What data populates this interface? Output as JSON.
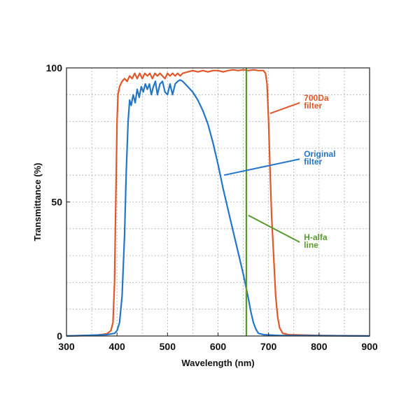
{
  "chart_data": {
    "type": "line",
    "title": "",
    "xlabel": "Wavelength (nm)",
    "ylabel": "Transmittance (%)",
    "xlim": [
      300,
      900
    ],
    "ylim": [
      0,
      100
    ],
    "x_ticks": [
      300,
      400,
      500,
      600,
      700,
      800,
      900
    ],
    "y_ticks": [
      0,
      50,
      100
    ],
    "grid": "dotted",
    "series": [
      {
        "name": "700Da filter",
        "color": "#e0582a",
        "points": [
          [
            300,
            0
          ],
          [
            360,
            0.3
          ],
          [
            380,
            0.8
          ],
          [
            388,
            2
          ],
          [
            392,
            5
          ],
          [
            395,
            20
          ],
          [
            398,
            55
          ],
          [
            400,
            80
          ],
          [
            402,
            90
          ],
          [
            405,
            93
          ],
          [
            410,
            95
          ],
          [
            415,
            96
          ],
          [
            420,
            95
          ],
          [
            425,
            97
          ],
          [
            430,
            96
          ],
          [
            435,
            98
          ],
          [
            440,
            96
          ],
          [
            445,
            98
          ],
          [
            450,
            96
          ],
          [
            455,
            98
          ],
          [
            460,
            97
          ],
          [
            465,
            98
          ],
          [
            470,
            96
          ],
          [
            475,
            98
          ],
          [
            480,
            97
          ],
          [
            485,
            98
          ],
          [
            490,
            97
          ],
          [
            495,
            96
          ],
          [
            500,
            98
          ],
          [
            505,
            97
          ],
          [
            510,
            98
          ],
          [
            515,
            97
          ],
          [
            520,
            98
          ],
          [
            525,
            97
          ],
          [
            530,
            98
          ],
          [
            540,
            98.5
          ],
          [
            550,
            99
          ],
          [
            560,
            98.5
          ],
          [
            570,
            99
          ],
          [
            580,
            98.5
          ],
          [
            590,
            99
          ],
          [
            600,
            99
          ],
          [
            610,
            98.5
          ],
          [
            620,
            99
          ],
          [
            630,
            99.3
          ],
          [
            640,
            99
          ],
          [
            650,
            99.3
          ],
          [
            660,
            99
          ],
          [
            670,
            99.3
          ],
          [
            680,
            99
          ],
          [
            690,
            99
          ],
          [
            694,
            98
          ],
          [
            697,
            94
          ],
          [
            700,
            80
          ],
          [
            703,
            62
          ],
          [
            706,
            45
          ],
          [
            710,
            30
          ],
          [
            714,
            15
          ],
          [
            718,
            7
          ],
          [
            722,
            3
          ],
          [
            728,
            1
          ],
          [
            740,
            0.5
          ],
          [
            800,
            0.2
          ],
          [
            900,
            0
          ]
        ]
      },
      {
        "name": "Original filter",
        "color": "#2476c9",
        "points": [
          [
            300,
            0
          ],
          [
            380,
            0.5
          ],
          [
            395,
            1
          ],
          [
            400,
            2
          ],
          [
            405,
            5
          ],
          [
            410,
            15
          ],
          [
            415,
            38
          ],
          [
            418,
            60
          ],
          [
            422,
            80
          ],
          [
            425,
            88
          ],
          [
            428,
            86
          ],
          [
            432,
            90
          ],
          [
            436,
            87
          ],
          [
            440,
            92
          ],
          [
            444,
            89
          ],
          [
            448,
            93
          ],
          [
            452,
            91
          ],
          [
            456,
            94
          ],
          [
            460,
            92
          ],
          [
            464,
            94
          ],
          [
            468,
            90
          ],
          [
            472,
            93
          ],
          [
            476,
            95
          ],
          [
            480,
            90
          ],
          [
            485,
            94
          ],
          [
            490,
            95
          ],
          [
            495,
            91
          ],
          [
            500,
            90
          ],
          [
            505,
            94
          ],
          [
            510,
            90
          ],
          [
            515,
            94
          ],
          [
            520,
            95
          ],
          [
            525,
            95.5
          ],
          [
            530,
            95
          ],
          [
            535,
            94
          ],
          [
            540,
            93
          ],
          [
            550,
            91
          ],
          [
            560,
            88
          ],
          [
            570,
            84
          ],
          [
            580,
            79
          ],
          [
            590,
            72
          ],
          [
            600,
            64
          ],
          [
            610,
            55
          ],
          [
            620,
            47
          ],
          [
            630,
            39
          ],
          [
            640,
            31
          ],
          [
            650,
            23
          ],
          [
            660,
            14
          ],
          [
            665,
            9
          ],
          [
            670,
            5
          ],
          [
            675,
            2.5
          ],
          [
            680,
            1
          ],
          [
            690,
            0.5
          ],
          [
            720,
            0.2
          ],
          [
            900,
            0
          ]
        ]
      },
      {
        "name": "H-alfa line",
        "color": "#5a9a2c",
        "points": [
          [
            656,
            0
          ],
          [
            656,
            100
          ]
        ]
      }
    ],
    "annotations": [
      {
        "text_lines": [
          "700Da",
          "filter"
        ],
        "series": 0,
        "anchor": [
          703,
          83
        ],
        "label_at": [
          770,
          87
        ]
      },
      {
        "text_lines": [
          "Original",
          "filter"
        ],
        "series": 1,
        "anchor": [
          612,
          60
        ],
        "label_at": [
          770,
          66
        ]
      },
      {
        "text_lines": [
          "H-alfa",
          "line"
        ],
        "series": 2,
        "anchor": [
          660,
          45
        ],
        "label_at": [
          770,
          35
        ]
      }
    ]
  }
}
